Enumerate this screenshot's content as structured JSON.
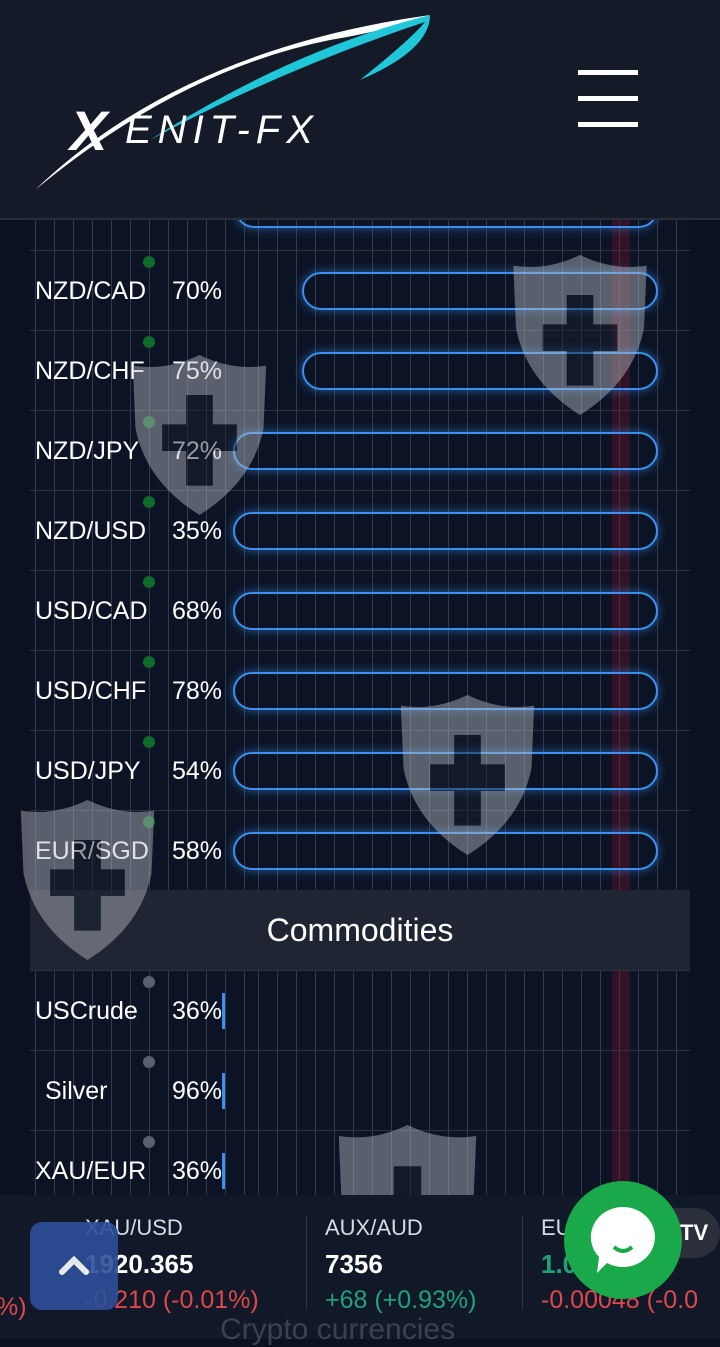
{
  "brand": {
    "name": "XENIT-FX",
    "accent": "#1fc7d8"
  },
  "header": {
    "menu_icon": "hamburger-icon"
  },
  "forex_rows": [
    {
      "symbol": "NZD/CAD",
      "percent": "70%",
      "bar_start": "late"
    },
    {
      "symbol": "NZD/CHF",
      "percent": "75%",
      "bar_start": "late"
    },
    {
      "symbol": "NZD/JPY",
      "percent": "72%"
    },
    {
      "symbol": "NZD/USD",
      "percent": "35%"
    },
    {
      "symbol": "USD/CAD",
      "percent": "68%"
    },
    {
      "symbol": "USD/CHF",
      "percent": "78%"
    },
    {
      "symbol": "USD/JPY",
      "percent": "54%"
    },
    {
      "symbol": "EUR/SGD",
      "percent": "58%"
    }
  ],
  "commodities": {
    "title": "Commodities",
    "rows": [
      {
        "symbol": "USCrude",
        "percent": "36%"
      },
      {
        "symbol": "Silver",
        "percent": "96%"
      },
      {
        "symbol": "XAU/EUR",
        "percent": "36%"
      }
    ]
  },
  "ticker": [
    {
      "name": "XAU/USD",
      "price": "1920.365",
      "change": "-0.210 (-0.01%)",
      "dir": "down"
    },
    {
      "name": "AUX/AUD",
      "price": "7356",
      "change": "+68 (+0.93%)",
      "dir": "up"
    },
    {
      "name": "EUR/USD",
      "price": "1.0",
      "change": "-0.00048 (-0.0",
      "dir": "down"
    }
  ],
  "ticker_left_fragment": "%)",
  "next_section": "Crypto currencies",
  "colors": {
    "bar": "#3b8ff0",
    "down": "#e0474c",
    "up": "#1fa27c",
    "chat": "#19a84a"
  }
}
